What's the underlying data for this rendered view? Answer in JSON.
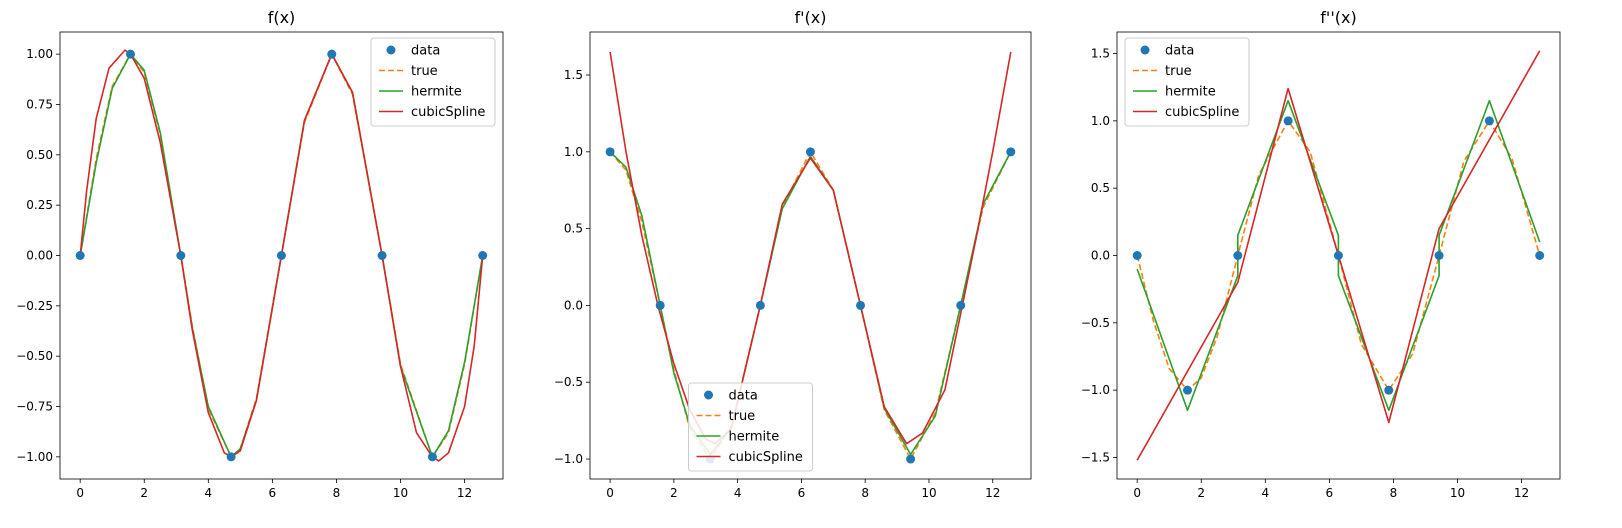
{
  "colors": {
    "data": "#1f77b4",
    "true": "#ff7f0e",
    "hermite": "#2ca02c",
    "cubicSpline": "#d62728"
  },
  "chart_data": [
    {
      "type": "line",
      "title": "f(x)",
      "xlabel": "",
      "ylabel": "",
      "xlim": [
        -0.63,
        13.2
      ],
      "ylim": [
        -1.11,
        1.11
      ],
      "xticks": [
        0,
        2,
        4,
        6,
        8,
        10,
        12
      ],
      "xtick_labels": [
        "0",
        "2",
        "4",
        "6",
        "8",
        "10",
        "12"
      ],
      "yticks": [
        -1.0,
        -0.75,
        -0.5,
        -0.25,
        0.0,
        0.25,
        0.5,
        0.75,
        1.0
      ],
      "ytick_labels": [
        "−1.00",
        "−0.75",
        "−0.50",
        "−0.25",
        "0.00",
        "0.25",
        "0.50",
        "0.75",
        "1.00"
      ],
      "legend": {
        "placement": "upper-right",
        "entries": [
          "data",
          "true",
          "hermite",
          "cubicSpline"
        ]
      },
      "grid": false,
      "series": [
        {
          "name": "data",
          "style": "markers",
          "x": [
            0,
            1.571,
            3.142,
            4.712,
            6.283,
            7.854,
            9.425,
            10.996,
            12.566
          ],
          "y": [
            0,
            1,
            0,
            -1,
            0,
            1,
            0,
            -1,
            0
          ]
        },
        {
          "name": "true",
          "style": "dashed",
          "x": [
            0,
            0.5,
            1.0,
            1.571,
            2.0,
            2.5,
            3.142,
            3.5,
            4.0,
            4.712,
            5.0,
            5.5,
            6.283,
            7.0,
            7.854,
            8.5,
            9.425,
            10.0,
            10.996,
            11.5,
            12.0,
            12.566
          ],
          "y": [
            0,
            0.48,
            0.84,
            1.0,
            0.91,
            0.6,
            0,
            -0.35,
            -0.76,
            -1.0,
            -0.96,
            -0.71,
            0,
            0.66,
            1.0,
            0.8,
            0,
            -0.54,
            -1.0,
            -0.88,
            -0.54,
            0
          ]
        },
        {
          "name": "hermite",
          "style": "solid",
          "x": [
            0,
            0.5,
            1.0,
            1.571,
            2.0,
            2.5,
            3.142,
            3.5,
            4.0,
            4.712,
            5.0,
            5.5,
            6.283,
            7.0,
            7.854,
            8.5,
            9.425,
            10.0,
            10.996,
            11.5,
            12.0,
            12.566
          ],
          "y": [
            0,
            0.46,
            0.83,
            1.0,
            0.92,
            0.61,
            0,
            -0.36,
            -0.75,
            -1.0,
            -0.96,
            -0.72,
            0,
            0.67,
            1.0,
            0.81,
            0,
            -0.55,
            -1.0,
            -0.87,
            -0.53,
            0
          ]
        },
        {
          "name": "cubicSpline",
          "style": "solid",
          "x": [
            0,
            0.2,
            0.5,
            0.9,
            1.4,
            1.571,
            2.0,
            2.5,
            3.142,
            3.5,
            4.0,
            4.5,
            4.712,
            5.0,
            5.5,
            6.283,
            7.0,
            7.854,
            8.5,
            9.425,
            10.0,
            10.5,
            10.996,
            11.2,
            11.5,
            12.0,
            12.3,
            12.566
          ],
          "y": [
            0,
            0.32,
            0.68,
            0.93,
            1.02,
            1.0,
            0.88,
            0.56,
            0,
            -0.37,
            -0.78,
            -0.98,
            -1.0,
            -0.97,
            -0.72,
            0,
            0.67,
            1.0,
            0.81,
            0,
            -0.55,
            -0.88,
            -1.0,
            -1.02,
            -0.98,
            -0.75,
            -0.45,
            0
          ]
        }
      ]
    },
    {
      "type": "line",
      "title": "f'(x)",
      "xlabel": "",
      "ylabel": "",
      "xlim": [
        -0.63,
        13.2
      ],
      "ylim": [
        -1.13,
        1.78
      ],
      "xticks": [
        0,
        2,
        4,
        6,
        8,
        10,
        12
      ],
      "xtick_labels": [
        "0",
        "2",
        "4",
        "6",
        "8",
        "10",
        "12"
      ],
      "yticks": [
        -1.0,
        -0.5,
        0.0,
        0.5,
        1.0,
        1.5
      ],
      "ytick_labels": [
        "−1.0",
        "−0.5",
        "0.0",
        "0.5",
        "1.0",
        "1.5"
      ],
      "legend": {
        "placement": "lower-center",
        "entries": [
          "data",
          "true",
          "hermite",
          "cubicSpline"
        ]
      },
      "grid": false,
      "series": [
        {
          "name": "data",
          "style": "markers",
          "x": [
            0,
            1.571,
            3.142,
            4.712,
            6.283,
            7.854,
            9.425,
            10.996,
            12.566
          ],
          "y": [
            1,
            0,
            -1,
            0,
            1,
            0,
            -1,
            0,
            1
          ]
        },
        {
          "name": "true",
          "style": "dashed",
          "x": [
            0,
            0.5,
            1.0,
            1.571,
            2.0,
            2.5,
            3.142,
            3.8,
            4.712,
            5.4,
            6.283,
            7.0,
            7.854,
            8.6,
            9.425,
            10.2,
            10.996,
            11.7,
            12.566
          ],
          "y": [
            1,
            0.88,
            0.54,
            0,
            -0.42,
            -0.8,
            -1.0,
            -0.79,
            0,
            0.64,
            1.0,
            0.75,
            0,
            -0.68,
            -1.0,
            -0.7,
            0,
            0.64,
            1.0
          ]
        },
        {
          "name": "hermite",
          "style": "solid",
          "x": [
            0,
            0.5,
            1.0,
            1.571,
            2.0,
            2.5,
            3.142,
            3.8,
            4.712,
            5.4,
            6.283,
            7.0,
            7.854,
            8.6,
            9.425,
            10.2,
            10.996,
            11.7,
            12.566
          ],
          "y": [
            1,
            0.9,
            0.58,
            0,
            -0.44,
            -0.78,
            -0.97,
            -0.8,
            0,
            0.63,
            0.97,
            0.75,
            0,
            -0.67,
            -0.97,
            -0.72,
            0,
            0.66,
            1.0
          ]
        },
        {
          "name": "cubicSpline",
          "style": "solid",
          "x": [
            0,
            0.5,
            1.0,
            1.5,
            2.0,
            2.5,
            3.0,
            3.3,
            3.8,
            4.712,
            5.4,
            6.283,
            7.0,
            7.854,
            8.6,
            9.3,
            9.8,
            10.5,
            11.0,
            11.5,
            12.0,
            12.566
          ],
          "y": [
            1.65,
            1.0,
            0.45,
            0.0,
            -0.38,
            -0.68,
            -0.87,
            -0.9,
            -0.8,
            0,
            0.66,
            0.96,
            0.75,
            0,
            -0.66,
            -0.9,
            -0.83,
            -0.55,
            -0.05,
            0.46,
            1.0,
            1.65
          ]
        }
      ]
    },
    {
      "type": "line",
      "title": "f''(x)",
      "xlabel": "",
      "ylabel": "",
      "xlim": [
        -0.63,
        13.2
      ],
      "ylim": [
        -1.66,
        1.66
      ],
      "xticks": [
        0,
        2,
        4,
        6,
        8,
        10,
        12
      ],
      "xtick_labels": [
        "0",
        "2",
        "4",
        "6",
        "8",
        "10",
        "12"
      ],
      "yticks": [
        -1.5,
        -1.0,
        -0.5,
        0.0,
        0.5,
        1.0,
        1.5
      ],
      "ytick_labels": [
        "−1.5",
        "−1.0",
        "−0.5",
        "0.0",
        "0.5",
        "1.0",
        "1.5"
      ],
      "legend": {
        "placement": "upper-left",
        "entries": [
          "data",
          "true",
          "hermite",
          "cubicSpline"
        ]
      },
      "grid": false,
      "series": [
        {
          "name": "data",
          "style": "markers",
          "x": [
            0,
            1.571,
            3.142,
            4.712,
            6.283,
            7.854,
            9.425,
            10.996,
            12.566
          ],
          "y": [
            0,
            -1,
            0,
            1,
            0,
            -1,
            0,
            1,
            0
          ]
        },
        {
          "name": "true",
          "style": "dashed",
          "x": [
            0,
            0.5,
            1.0,
            1.571,
            2.0,
            2.5,
            3.142,
            3.8,
            4.712,
            5.4,
            6.283,
            7.0,
            7.854,
            8.6,
            9.425,
            10.2,
            10.996,
            11.7,
            12.566
          ],
          "y": [
            0,
            -0.48,
            -0.84,
            -1.0,
            -0.91,
            -0.6,
            0,
            0.6,
            1.0,
            0.77,
            0,
            -0.66,
            -1.0,
            -0.73,
            0,
            0.7,
            1.0,
            0.72,
            0
          ]
        },
        {
          "name": "hermite",
          "style": "solid",
          "x": [
            0,
            1.571,
            3.142,
            3.142,
            4.712,
            6.283,
            6.283,
            7.854,
            9.425,
            9.425,
            10.996,
            12.566
          ],
          "y": [
            -0.1,
            -1.15,
            -0.15,
            0.15,
            1.15,
            0.15,
            -0.15,
            -1.15,
            -0.15,
            0.15,
            1.15,
            0.1
          ]
        },
        {
          "name": "cubicSpline",
          "style": "solid",
          "x": [
            0,
            3.142,
            4.712,
            7.854,
            9.425,
            12.566
          ],
          "y": [
            -1.52,
            -0.2,
            1.24,
            -1.24,
            0.2,
            1.52
          ]
        }
      ]
    }
  ]
}
